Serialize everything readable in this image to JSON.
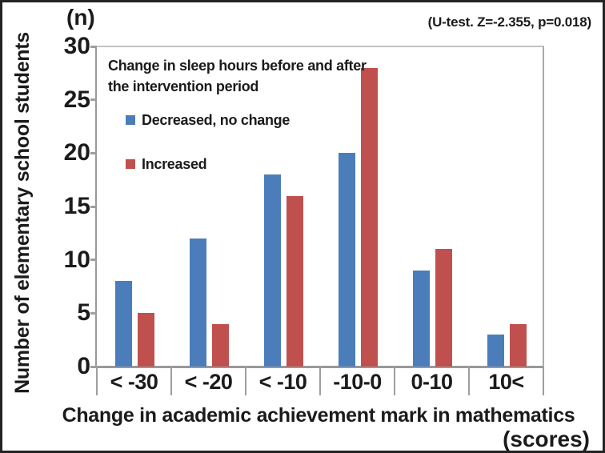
{
  "figure": {
    "y_unit_label": "(n)",
    "annotation": "(U-test. Z=-2.355, p=0.018)",
    "ylabel": "Number of elementary school students",
    "xlabel": "Change in academic achievement mark in mathematics",
    "x_unit_label": "(scores)"
  },
  "legend": {
    "title": "Change in sleep hours before and after the intervention period",
    "items": [
      {
        "label": "Decreased, no change",
        "color": "#4b7dba"
      },
      {
        "label": "Increased",
        "color": "#c0504d"
      }
    ]
  },
  "chart_data": {
    "type": "bar",
    "title": "",
    "categories": [
      "< -30",
      "< -20",
      "< -10",
      "-10-0",
      "0-10",
      "10<"
    ],
    "series": [
      {
        "name": "Decreased, no change",
        "color": "#4b7dba",
        "values": [
          8,
          12,
          18,
          20,
          9,
          3
        ]
      },
      {
        "name": "Increased",
        "color": "#c0504d",
        "values": [
          5,
          4,
          16,
          28,
          11,
          4
        ]
      }
    ],
    "xlabel": "Change in academic achievement mark in mathematics",
    "x_unit_label": "(scores)",
    "ylabel": "Number of elementary school students",
    "y_unit_label": "(n)",
    "ylim": [
      0,
      30
    ],
    "yticks": [
      0,
      5,
      10,
      15,
      20,
      25,
      30
    ],
    "grid": false,
    "legend_position": "upper-left-inside",
    "legend_title": "Change in sleep hours before and after the intervention period",
    "annotation": "(U-test. Z=-2.355, p=0.018)"
  }
}
